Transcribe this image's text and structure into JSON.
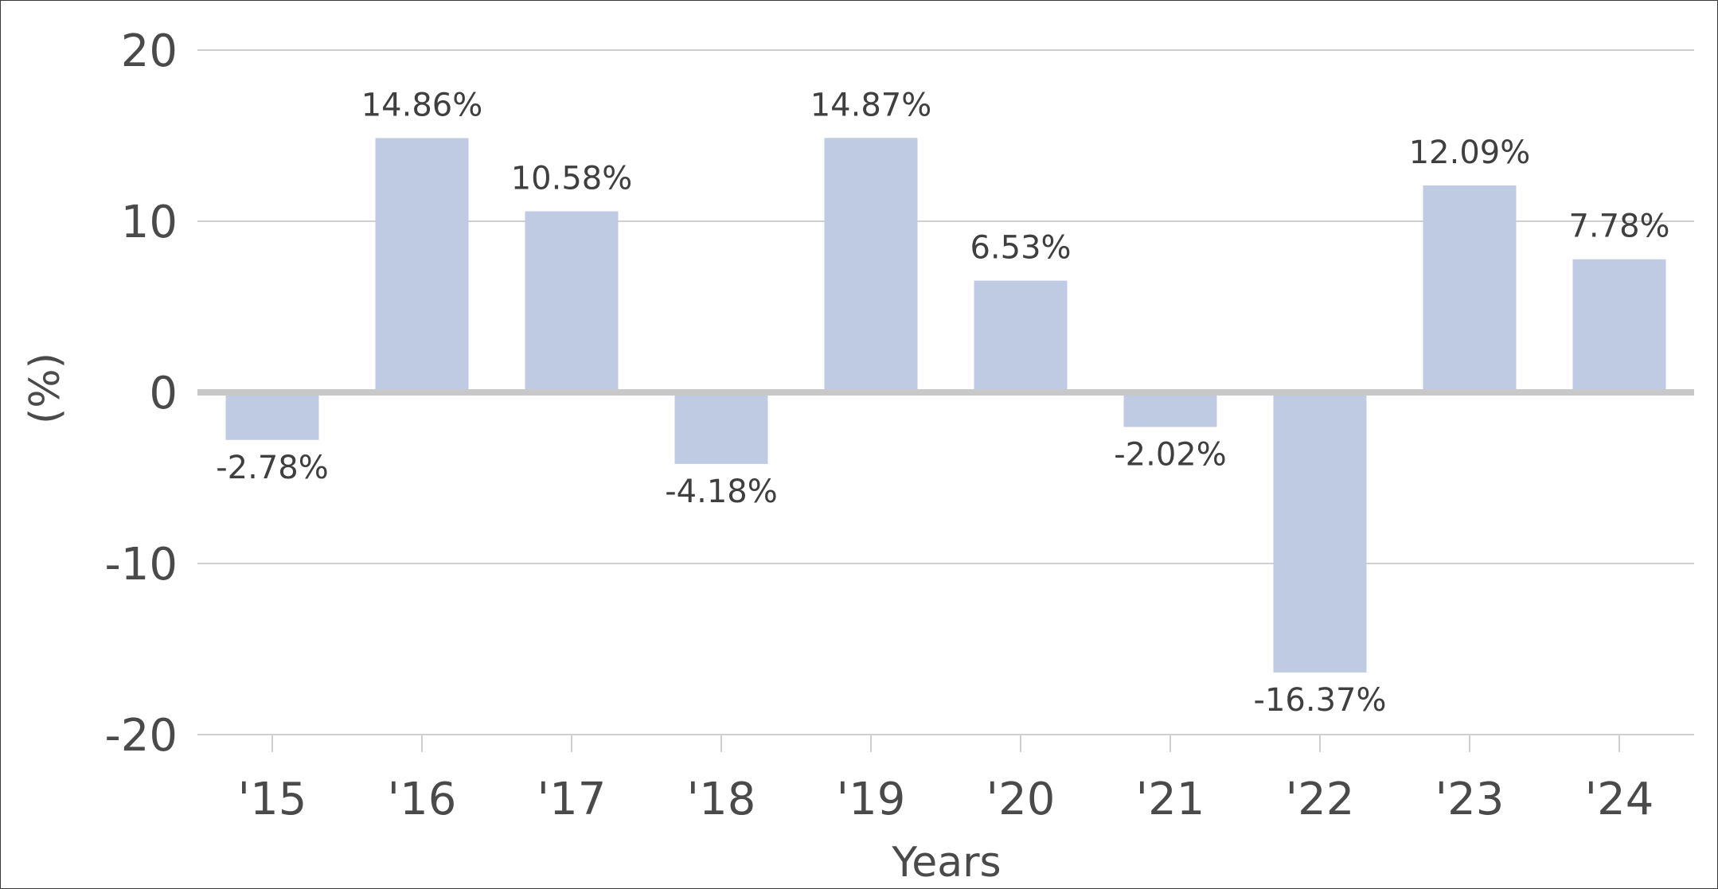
{
  "chart_data": {
    "type": "bar",
    "categories": [
      "'15",
      "'16",
      "'17",
      "'18",
      "'19",
      "'20",
      "'21",
      "'22",
      "'23",
      "'24"
    ],
    "values": [
      -2.78,
      14.86,
      10.58,
      -4.18,
      14.87,
      6.53,
      -2.02,
      -16.37,
      12.09,
      7.78
    ],
    "data_labels": [
      "-2.78%",
      "14.86%",
      "10.58%",
      "-4.18%",
      "14.87%",
      "6.53%",
      "-2.02%",
      "-16.37%",
      "12.09%",
      "7.78%"
    ],
    "yticks": [
      20,
      10,
      0,
      -10,
      -20
    ],
    "ytick_labels": [
      "20",
      "10",
      "0",
      "-10",
      "-20"
    ],
    "ylim": [
      -20,
      20
    ],
    "xlabel": "Years",
    "ylabel": "(%)",
    "grid": true,
    "colors": {
      "bar": "#bfcbe3",
      "grid": "#cfcfcf",
      "zero_line": "#c8c8c8",
      "text": "#4a4a4a",
      "border": "#3a3a3a"
    }
  }
}
